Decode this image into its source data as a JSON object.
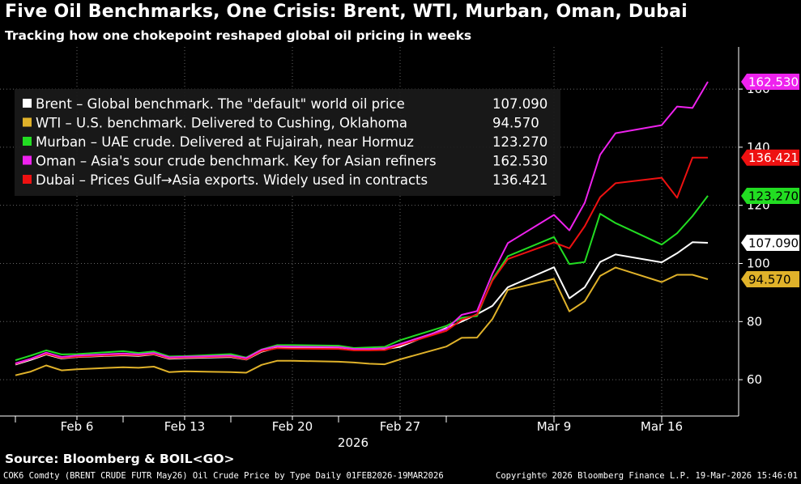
{
  "title": "Five Oil Benchmarks, One Crisis: Brent, WTI, Murban, Oman, Dubai",
  "subtitle": "Tracking how one chokepoint reshaped global oil pricing in weeks",
  "source": "Source: Bloomberg & BOIL<GO>",
  "footer": {
    "left": "COK6 Comdty (BRENT CRUDE FUTR  May26) Oil Crude Price by Type Daily 01FEB2026-19MAR2026",
    "right": "Copyright© 2026 Bloomberg Finance L.P.   19-Mar-2026 15:46:01"
  },
  "chart_data": {
    "type": "line",
    "title": "Five Oil Benchmarks, One Crisis: Brent, WTI, Murban, Oman, Dubai",
    "xlabel": "2026",
    "ylabel": "",
    "ylim": [
      47.5,
      174.5
    ],
    "xlim": [
      "2026-02-01",
      "2026-03-21"
    ],
    "grid": true,
    "legend_position": "top-left",
    "x_ticks": [
      {
        "date": "2026-02-06",
        "label": "Feb 6"
      },
      {
        "date": "2026-02-13",
        "label": "Feb 13"
      },
      {
        "date": "2026-02-20",
        "label": "Feb 20"
      },
      {
        "date": "2026-02-27",
        "label": "Feb 27"
      },
      {
        "date": "2026-03-09",
        "label": "Mar 9"
      },
      {
        "date": "2026-03-16",
        "label": "Mar 16"
      }
    ],
    "y_ticks": [
      60,
      80,
      100,
      120,
      140,
      160
    ],
    "x": [
      "2026-02-02",
      "2026-02-03",
      "2026-02-04",
      "2026-02-05",
      "2026-02-06",
      "2026-02-09",
      "2026-02-10",
      "2026-02-11",
      "2026-02-12",
      "2026-02-13",
      "2026-02-16",
      "2026-02-17",
      "2026-02-18",
      "2026-02-19",
      "2026-02-20",
      "2026-02-23",
      "2026-02-24",
      "2026-02-25",
      "2026-02-26",
      "2026-02-27",
      "2026-03-02",
      "2026-03-03",
      "2026-03-04",
      "2026-03-05",
      "2026-03-06",
      "2026-03-09",
      "2026-03-10",
      "2026-03-11",
      "2026-03-12",
      "2026-03-13",
      "2026-03-16",
      "2026-03-17",
      "2026-03-18",
      "2026-03-19"
    ],
    "series": [
      {
        "name": "Brent",
        "color": "#ffffff",
        "legend": "Brent – Global benchmark. The \"default\" world oil price",
        "last": "107.090",
        "values": [
          65.2,
          66.8,
          68.7,
          67.3,
          67.8,
          68.4,
          68.2,
          68.7,
          67.2,
          67.4,
          67.8,
          66.9,
          69.6,
          71.0,
          71.1,
          70.9,
          70.4,
          70.5,
          70.5,
          71.3,
          77.8,
          80.0,
          82.5,
          85.4,
          91.8,
          98.7,
          88.0,
          91.8,
          100.5,
          103.1,
          100.4,
          103.5,
          107.3,
          107.09
        ]
      },
      {
        "name": "WTI",
        "color": "#e0b22a",
        "legend": "WTI – U.S. benchmark. Delivered to Cushing, Oklahoma",
        "last": "94.570",
        "values": [
          61.5,
          62.8,
          64.9,
          63.2,
          63.6,
          64.3,
          64.1,
          64.5,
          62.6,
          62.9,
          62.6,
          62.4,
          65.1,
          66.5,
          66.5,
          66.2,
          65.9,
          65.5,
          65.3,
          67.0,
          71.4,
          74.4,
          74.5,
          80.9,
          90.9,
          94.7,
          83.5,
          87.0,
          95.7,
          98.6,
          93.6,
          96.1,
          96.1,
          94.57
        ]
      },
      {
        "name": "Murban",
        "color": "#22dd22",
        "legend": "Murban – UAE crude. Delivered at Fujairah, near Hormuz",
        "last": "123.270",
        "values": [
          66.7,
          68.3,
          70.1,
          68.7,
          68.8,
          69.8,
          69.2,
          69.7,
          68.0,
          68.1,
          68.8,
          67.6,
          70.4,
          71.9,
          71.9,
          71.7,
          70.9,
          71.1,
          71.3,
          73.6,
          78.5,
          81.3,
          81.9,
          94.5,
          102.5,
          109.1,
          99.8,
          100.5,
          117.1,
          113.9,
          106.5,
          110.4,
          116.3,
          123.27
        ]
      },
      {
        "name": "Oman",
        "color": "#ee22ee",
        "legend": "Oman – Asia's sour crude benchmark. Key for Asian refiners",
        "last": "162.530",
        "values": [
          65.6,
          67.2,
          69.3,
          67.8,
          68.3,
          69.0,
          68.7,
          69.2,
          67.7,
          67.9,
          68.3,
          67.4,
          70.3,
          71.5,
          71.4,
          71.2,
          70.6,
          70.6,
          70.8,
          72.3,
          77.4,
          82.3,
          83.6,
          96.5,
          107.0,
          116.7,
          111.4,
          120.9,
          137.4,
          144.8,
          147.6,
          154.0,
          153.5,
          162.53
        ]
      },
      {
        "name": "Dubai",
        "color": "#ee1111",
        "legend": "Dubai – Prices Gulf→Asia exports. Widely used in contracts",
        "last": "136.421",
        "values": [
          65.4,
          67.1,
          68.9,
          67.5,
          67.9,
          68.6,
          68.4,
          68.8,
          67.4,
          67.6,
          68.0,
          67.0,
          69.8,
          70.8,
          70.7,
          70.6,
          70.1,
          70.1,
          70.2,
          71.9,
          76.8,
          80.6,
          82.4,
          94.1,
          101.5,
          107.2,
          105.2,
          112.8,
          122.8,
          127.6,
          129.5,
          122.6,
          136.4,
          136.421
        ]
      }
    ]
  }
}
